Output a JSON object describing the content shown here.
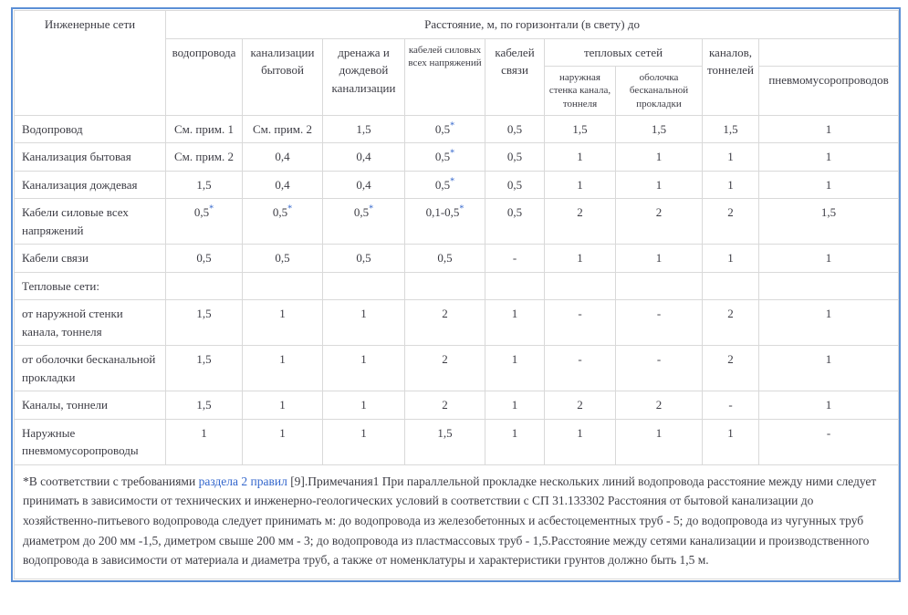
{
  "table": {
    "corner_header": "Инженерные сети",
    "distance_header": "Расстояние, м, по горизонтали (в свету) до",
    "col_headers": {
      "water": "водопровода",
      "sewage": "канализации бытовой",
      "drainage": "дренажа и дождевой канализации",
      "power_cables": "кабелей силовых всех напряжений",
      "comm_cables": "кабелей связи",
      "heat_networks": "тепловых сетей",
      "heat_outer_wall": "наружная стенка канала, тоннеля",
      "heat_ductless": "оболочка бесканальной прокладки",
      "channels": "каналов, тоннелей",
      "pneumo": "пневмомусоропроводов"
    },
    "rows": [
      {
        "label": "Водопровод",
        "values": [
          "См. прим. 1",
          "См. прим. 2",
          "1,5",
          "0,5*",
          "0,5",
          "1,5",
          "1,5",
          "1,5",
          "1"
        ],
        "tall": false
      },
      {
        "label": "Канализация бытовая",
        "values": [
          "См. прим. 2",
          "0,4",
          "0,4",
          "0,5*",
          "0,5",
          "1",
          "1",
          "1",
          "1"
        ],
        "tall": false
      },
      {
        "label": "Канализация дождевая",
        "values": [
          "1,5",
          "0,4",
          "0,4",
          "0,5*",
          "0,5",
          "1",
          "1",
          "1",
          "1"
        ],
        "tall": false
      },
      {
        "label": "Кабели силовые всех напряжений",
        "values": [
          "0,5*",
          "0,5*",
          "0,5*",
          "0,1-0,5*",
          "0,5",
          "2",
          "2",
          "2",
          "1,5"
        ],
        "tall": true
      },
      {
        "label": "Кабели связи",
        "values": [
          "0,5",
          "0,5",
          "0,5",
          "0,5",
          "-",
          "1",
          "1",
          "1",
          "1"
        ],
        "tall": false
      },
      {
        "label": "Тепловые сети:",
        "values": [
          "",
          "",
          "",
          "",
          "",
          "",
          "",
          "",
          ""
        ],
        "tall": false
      },
      {
        "label": "от наружной стенки канала, тоннеля",
        "values": [
          "1,5",
          "1",
          "1",
          "2",
          "1",
          "-",
          "-",
          "2",
          "1"
        ],
        "tall": false
      },
      {
        "label": "от оболочки бесканальной прокладки",
        "values": [
          "1,5",
          "1",
          "1",
          "2",
          "1",
          "-",
          "-",
          "2",
          "1"
        ],
        "tall": true
      },
      {
        "label": "Каналы, тоннели",
        "values": [
          "1,5",
          "1",
          "1",
          "2",
          "1",
          "2",
          "2",
          "-",
          "1"
        ],
        "tall": false
      },
      {
        "label": "Наружные пневмомусоропроводы",
        "values": [
          "1",
          "1",
          "1",
          "1,5",
          "1",
          "1",
          "1",
          "1",
          "-"
        ],
        "tall": false
      }
    ]
  },
  "note": {
    "prefix": "*В соответствии с требованиями ",
    "link_text": "раздела 2 правил",
    "suffix": " [9].Примечания1 При параллельной прокладке нескольких линий водопровода расстояние между ними следует принимать в зависимости от технических и инженерно-геологических условий в соответствии с СП 31.133302 Расстояния от бытовой канализации до хозяйственно-питьевого водопровода следует принимать м: до водопровода из железобетонных и асбестоцементных труб - 5; до водопровода из чугунных труб диаметром до 200 мм -1,5, диметром свыше 200 мм - 3; до водопровода из пластмассовых труб - 1,5.Расстояние между сетями канализации и производственного водопровода в зависимости от материала и диаметра труб, а также от номенклатуры и характеристики грунтов должно быть 1,5 м."
  },
  "colors": {
    "outer_border_blue": "#5b8fd6",
    "grid_gray": "#d9d9d9",
    "text": "#3c3c44",
    "link_blue": "#3366cc"
  }
}
